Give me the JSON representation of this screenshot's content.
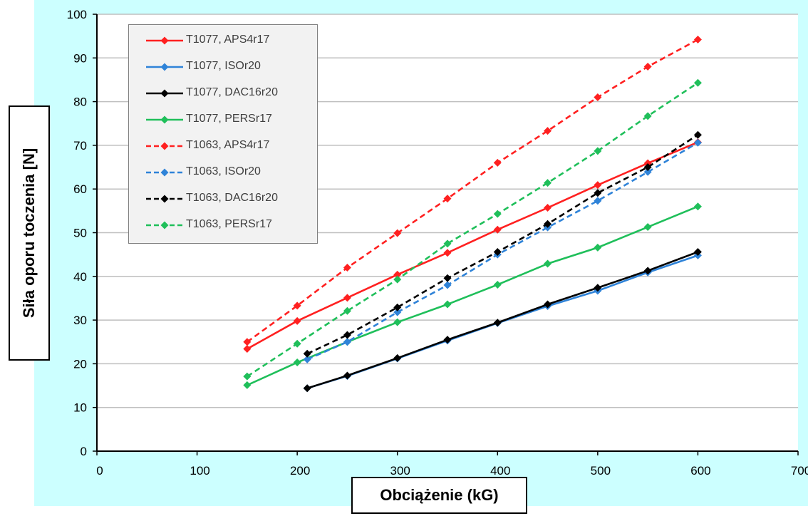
{
  "chart_data": {
    "type": "line",
    "title": "",
    "xlabel": "Obciążenie (kG)",
    "ylabel": "Siła oporu toczenia [N]",
    "xlim": [
      0,
      700
    ],
    "ylim": [
      0,
      100
    ],
    "x_ticks": [
      "0",
      "100",
      "200",
      "300",
      "400",
      "500",
      "600",
      "700"
    ],
    "y_ticks": [
      "0",
      "10",
      "20",
      "30",
      "40",
      "50",
      "60",
      "70",
      "80",
      "90",
      "100"
    ],
    "grid": true,
    "legend_position": "top-left",
    "series": [
      {
        "name": "T1077, APS4r17",
        "color": "#ff2020",
        "style": "solid",
        "x": [
          150,
          200,
          250,
          300,
          350,
          400,
          450,
          500,
          550,
          600
        ],
        "y": [
          23.4,
          29.8,
          35.1,
          40.4,
          45.4,
          50.7,
          55.7,
          60.9,
          65.9,
          70.7
        ]
      },
      {
        "name": "T1077, ISOr20",
        "color": "#2f83d8",
        "style": "solid",
        "x": [
          210,
          250,
          300,
          350,
          400,
          450,
          500,
          550,
          600
        ],
        "y": [
          14.4,
          17.2,
          21.2,
          25.3,
          29.3,
          33.2,
          36.7,
          40.9,
          44.8
        ]
      },
      {
        "name": "T1077, DAC16r20",
        "color": "#000000",
        "style": "solid",
        "x": [
          210,
          250,
          300,
          350,
          400,
          450,
          500,
          550,
          600
        ],
        "y": [
          14.4,
          17.3,
          21.3,
          25.5,
          29.4,
          33.6,
          37.4,
          41.3,
          45.6
        ]
      },
      {
        "name": "T1077, PERSr17",
        "color": "#1fbf5a",
        "style": "solid",
        "x": [
          150,
          200,
          250,
          300,
          350,
          400,
          450,
          500,
          550,
          600
        ],
        "y": [
          15.1,
          20.3,
          25.0,
          29.5,
          33.6,
          38.1,
          42.9,
          46.6,
          51.3,
          56.0
        ]
      },
      {
        "name": "T1063, APS4r17",
        "color": "#ff2020",
        "style": "dashed",
        "x": [
          150,
          200,
          250,
          300,
          350,
          400,
          450,
          500,
          550,
          600
        ],
        "y": [
          25.0,
          33.3,
          42.0,
          49.9,
          57.8,
          66.0,
          73.3,
          81.0,
          88.0,
          94.2
        ]
      },
      {
        "name": "T1063, ISOr20",
        "color": "#2f83d8",
        "style": "dashed",
        "x": [
          210,
          250,
          300,
          350,
          400,
          450,
          500,
          550,
          600
        ],
        "y": [
          21.0,
          25.0,
          31.8,
          38.0,
          45.0,
          51.2,
          57.3,
          63.9,
          70.6
        ]
      },
      {
        "name": "T1063, DAC16r20",
        "color": "#000000",
        "style": "dashed",
        "x": [
          210,
          250,
          300,
          350,
          400,
          450,
          500,
          550,
          600
        ],
        "y": [
          22.3,
          26.6,
          32.9,
          39.6,
          45.6,
          52.0,
          59.1,
          65.0,
          72.4
        ]
      },
      {
        "name": "T1063, PERSr17",
        "color": "#1fbf5a",
        "style": "dashed",
        "x": [
          150,
          200,
          250,
          300,
          350,
          400,
          450,
          500,
          550,
          600
        ],
        "y": [
          17.1,
          24.6,
          32.1,
          39.3,
          47.5,
          54.3,
          61.4,
          68.7,
          76.7,
          84.3
        ]
      }
    ]
  },
  "colors": {
    "frame_background": "#ccffff",
    "plot_background": "#ffffff",
    "gridline": "#bfbfbf",
    "axis": "#000000"
  }
}
